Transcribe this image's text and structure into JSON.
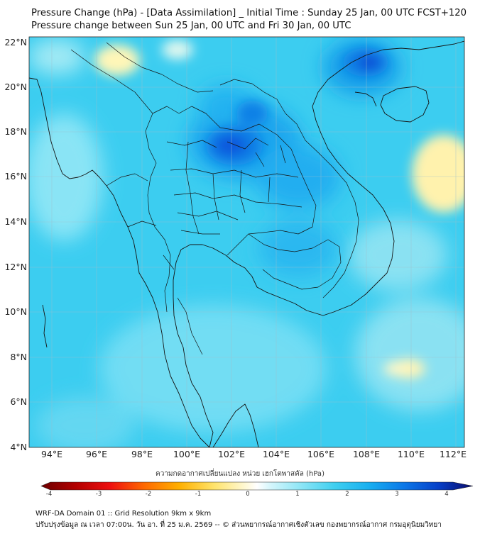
{
  "title_line1": "Pressure Change (hPa) - [Data Assimilation] _ Initial Time : Sunday 25 Jan, 00 UTC FCST+120",
  "title_line2": "Pressure change between Sun 25 Jan, 00 UTC and Fri 30 Jan, 00 UTC",
  "lat_labels": [
    "22°N",
    "20°N",
    "18°N",
    "16°N",
    "14°N",
    "12°N",
    "10°N",
    "8°N",
    "6°N",
    "4°N"
  ],
  "lon_labels": [
    "94°E",
    "96°E",
    "98°E",
    "100°E",
    "102°E",
    "104°E",
    "106°E",
    "108°E",
    "110°E",
    "112°E"
  ],
  "colorbar": {
    "title": "ความกดอากาศเปลี่ยนแปลง หน่วย เฮกโตพาสคัล (hPa)",
    "ticks": [
      "-4",
      "-3",
      "-2",
      "-1",
      "0",
      "1",
      "2",
      "3",
      "4"
    ],
    "range": [
      -4,
      4
    ]
  },
  "footer_line1": "WRF-DA Domain 01 :: Grid Resolution 9km x 9km",
  "footer_line2": "ปรับปรุงข้อมูล ณ เวลา 07:00น. วัน อา. ที่ 25 ม.ค. 2569 -- © ส่วนพยากรณ์อากาศเชิงตัวเลข กองพยากรณ์อากาศ กรมอุตุนิยมวิทยา",
  "colors": {
    "field_base": "#33ccf0",
    "strong_fall": "#0a57dd",
    "weak_change": "#fff7c0"
  }
}
